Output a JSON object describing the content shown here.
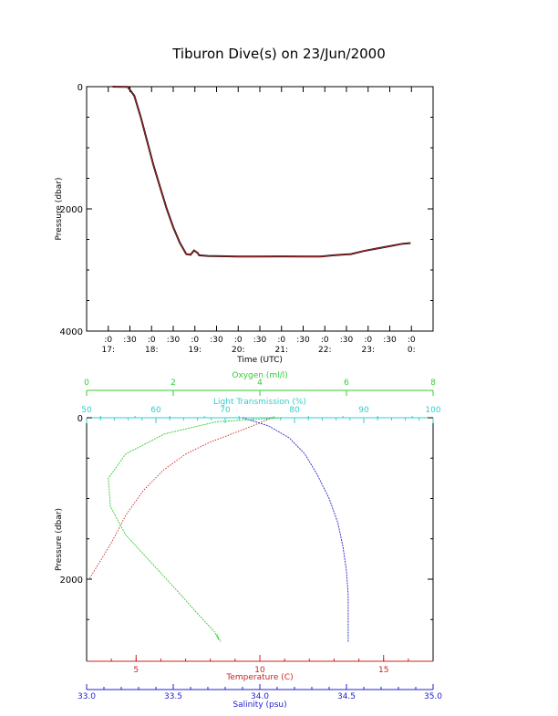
{
  "title": "Tiburon Dive(s) on 23/Jun/2000",
  "chart_data": [
    {
      "type": "line",
      "xlabel": "Time (UTC)",
      "ylabel": "Pressure (dbar)",
      "y_reversed": true,
      "ylim": [
        0,
        4000
      ],
      "xlim_hours": [
        16.5,
        24.5
      ],
      "y_ticks": [
        0,
        2000,
        4000
      ],
      "x_ticks": [
        {
          "h": 17.0,
          "top": ":0",
          "bottom": "17:"
        },
        {
          "h": 17.5,
          "top": ":30",
          "bottom": ""
        },
        {
          "h": 18.0,
          "top": ":0",
          "bottom": "18:"
        },
        {
          "h": 18.5,
          "top": ":30",
          "bottom": ""
        },
        {
          "h": 19.0,
          "top": ":0",
          "bottom": "19:"
        },
        {
          "h": 19.5,
          "top": ":30",
          "bottom": ""
        },
        {
          "h": 20.0,
          "top": ":0",
          "bottom": "20:"
        },
        {
          "h": 20.5,
          "top": ":30",
          "bottom": ""
        },
        {
          "h": 21.0,
          "top": ":0",
          "bottom": "21:"
        },
        {
          "h": 21.5,
          "top": ":30",
          "bottom": ""
        },
        {
          "h": 22.0,
          "top": ":0",
          "bottom": "22:"
        },
        {
          "h": 22.5,
          "top": ":30",
          "bottom": ""
        },
        {
          "h": 23.0,
          "top": ":0",
          "bottom": "23:"
        },
        {
          "h": 23.5,
          "top": ":30",
          "bottom": ""
        },
        {
          "h": 24.0,
          "top": ":0",
          "bottom": "0:"
        }
      ],
      "series": [
        {
          "color": "#cc2222",
          "points": [
            [
              17.1,
              0
            ],
            [
              17.45,
              5
            ],
            [
              17.6,
              150
            ],
            [
              17.75,
              500
            ],
            [
              17.9,
              900
            ],
            [
              18.05,
              1300
            ],
            [
              18.2,
              1650
            ],
            [
              18.35,
              2000
            ],
            [
              18.5,
              2300
            ],
            [
              18.65,
              2550
            ],
            [
              18.8,
              2740
            ],
            [
              18.9,
              2750
            ],
            [
              18.98,
              2680
            ],
            [
              19.06,
              2720
            ],
            [
              19.1,
              2760
            ],
            [
              19.3,
              2770
            ],
            [
              19.6,
              2775
            ],
            [
              20.0,
              2780
            ],
            [
              20.5,
              2780
            ],
            [
              21.0,
              2778
            ],
            [
              21.5,
              2780
            ],
            [
              21.9,
              2780
            ],
            [
              22.2,
              2760
            ],
            [
              22.6,
              2740
            ],
            [
              22.9,
              2690
            ],
            [
              23.2,
              2650
            ],
            [
              23.5,
              2610
            ],
            [
              23.8,
              2570
            ],
            [
              23.98,
              2560
            ]
          ]
        }
      ]
    },
    {
      "type": "scatter",
      "ylabel": "Pressure (dbar)",
      "y_reversed": true,
      "ylim": [
        0,
        4000
      ],
      "y_ticks": [
        0,
        2000
      ],
      "axes": {
        "oxygen": {
          "label": "Oxygen (ml/l)",
          "color": "#33cc33",
          "range": [
            0,
            8
          ],
          "ticks": [
            0,
            2,
            4,
            6,
            8
          ]
        },
        "transmission": {
          "label": "Light Transmission (%)",
          "color": "#33cccc",
          "range": [
            50,
            100
          ],
          "ticks": [
            50,
            60,
            70,
            80,
            90,
            100
          ]
        },
        "temperature": {
          "label": "Temperature (C)",
          "color": "#cc2222",
          "range": [
            3,
            17
          ],
          "ticks": [
            5,
            10,
            15
          ]
        },
        "salinity": {
          "label": "Salinity (psu)",
          "color": "#2222cc",
          "range": [
            33.0,
            35.0
          ],
          "ticks": [
            "33.0",
            "33.5",
            "34.0",
            "34.5",
            "35.0"
          ]
        }
      },
      "series": [
        {
          "axis": "temperature",
          "points": [
            [
              10.5,
              0
            ],
            [
              9.3,
              150
            ],
            [
              8.0,
              300
            ],
            [
              7.0,
              450
            ],
            [
              6.1,
              650
            ],
            [
              5.3,
              900
            ],
            [
              4.6,
              1200
            ],
            [
              4.0,
              1550
            ],
            [
              3.5,
              1800
            ],
            [
              3.1,
              2000
            ]
          ]
        },
        {
          "axis": "salinity",
          "points": [
            [
              33.9,
              0
            ],
            [
              34.05,
              100
            ],
            [
              34.17,
              250
            ],
            [
              34.26,
              450
            ],
            [
              34.33,
              700
            ],
            [
              34.4,
              1000
            ],
            [
              34.45,
              1300
            ],
            [
              34.48,
              1600
            ],
            [
              34.5,
              1900
            ],
            [
              34.51,
              2200
            ],
            [
              34.51,
              2500
            ],
            [
              34.51,
              2740
            ],
            [
              34.51,
              2780
            ]
          ]
        },
        {
          "axis": "oxygen",
          "points": [
            [
              4.5,
              0
            ],
            [
              3.0,
              50
            ],
            [
              1.8,
              200
            ],
            [
              0.9,
              450
            ],
            [
              0.5,
              750
            ],
            [
              0.55,
              1100
            ],
            [
              0.9,
              1450
            ],
            [
              1.5,
              1800
            ],
            [
              2.1,
              2150
            ],
            [
              2.6,
              2450
            ],
            [
              2.95,
              2650
            ],
            [
              3.05,
              2750
            ],
            [
              3.0,
              2680
            ],
            [
              3.1,
              2780
            ]
          ]
        },
        {
          "axis": "transmission",
          "points": [
            [
              52,
              0
            ],
            [
              57,
              0
            ],
            [
              62,
              0
            ],
            [
              67,
              0
            ],
            [
              72,
              0
            ],
            [
              77,
              0
            ],
            [
              82,
              0
            ],
            [
              87,
              0
            ],
            [
              92,
              0
            ],
            [
              97,
              0
            ]
          ]
        }
      ]
    }
  ]
}
